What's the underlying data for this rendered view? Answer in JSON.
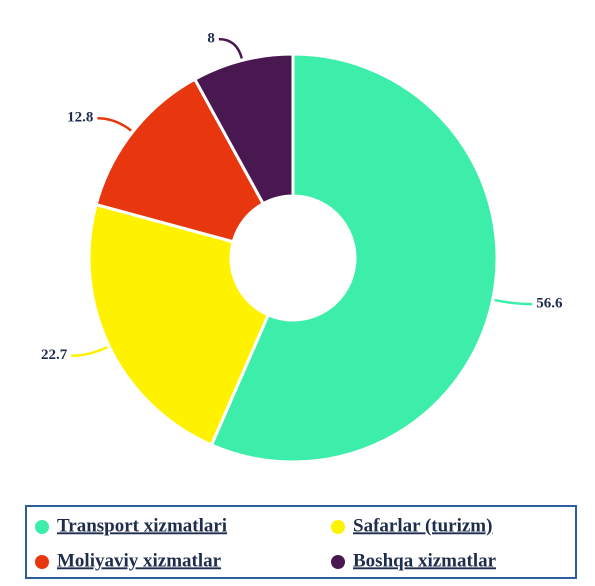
{
  "chart_data": {
    "type": "donut",
    "categories": [
      "Transport xizmatlari",
      "Safarlar (turizm)",
      "Moliyaviy xizmatlar",
      "Boshqa xizmatlar"
    ],
    "values": [
      56.6,
      22.7,
      12.8,
      8
    ],
    "colors": [
      "#3deeaa",
      "#fff200",
      "#e8370e",
      "#4a1850"
    ],
    "legend": "bottom"
  }
}
